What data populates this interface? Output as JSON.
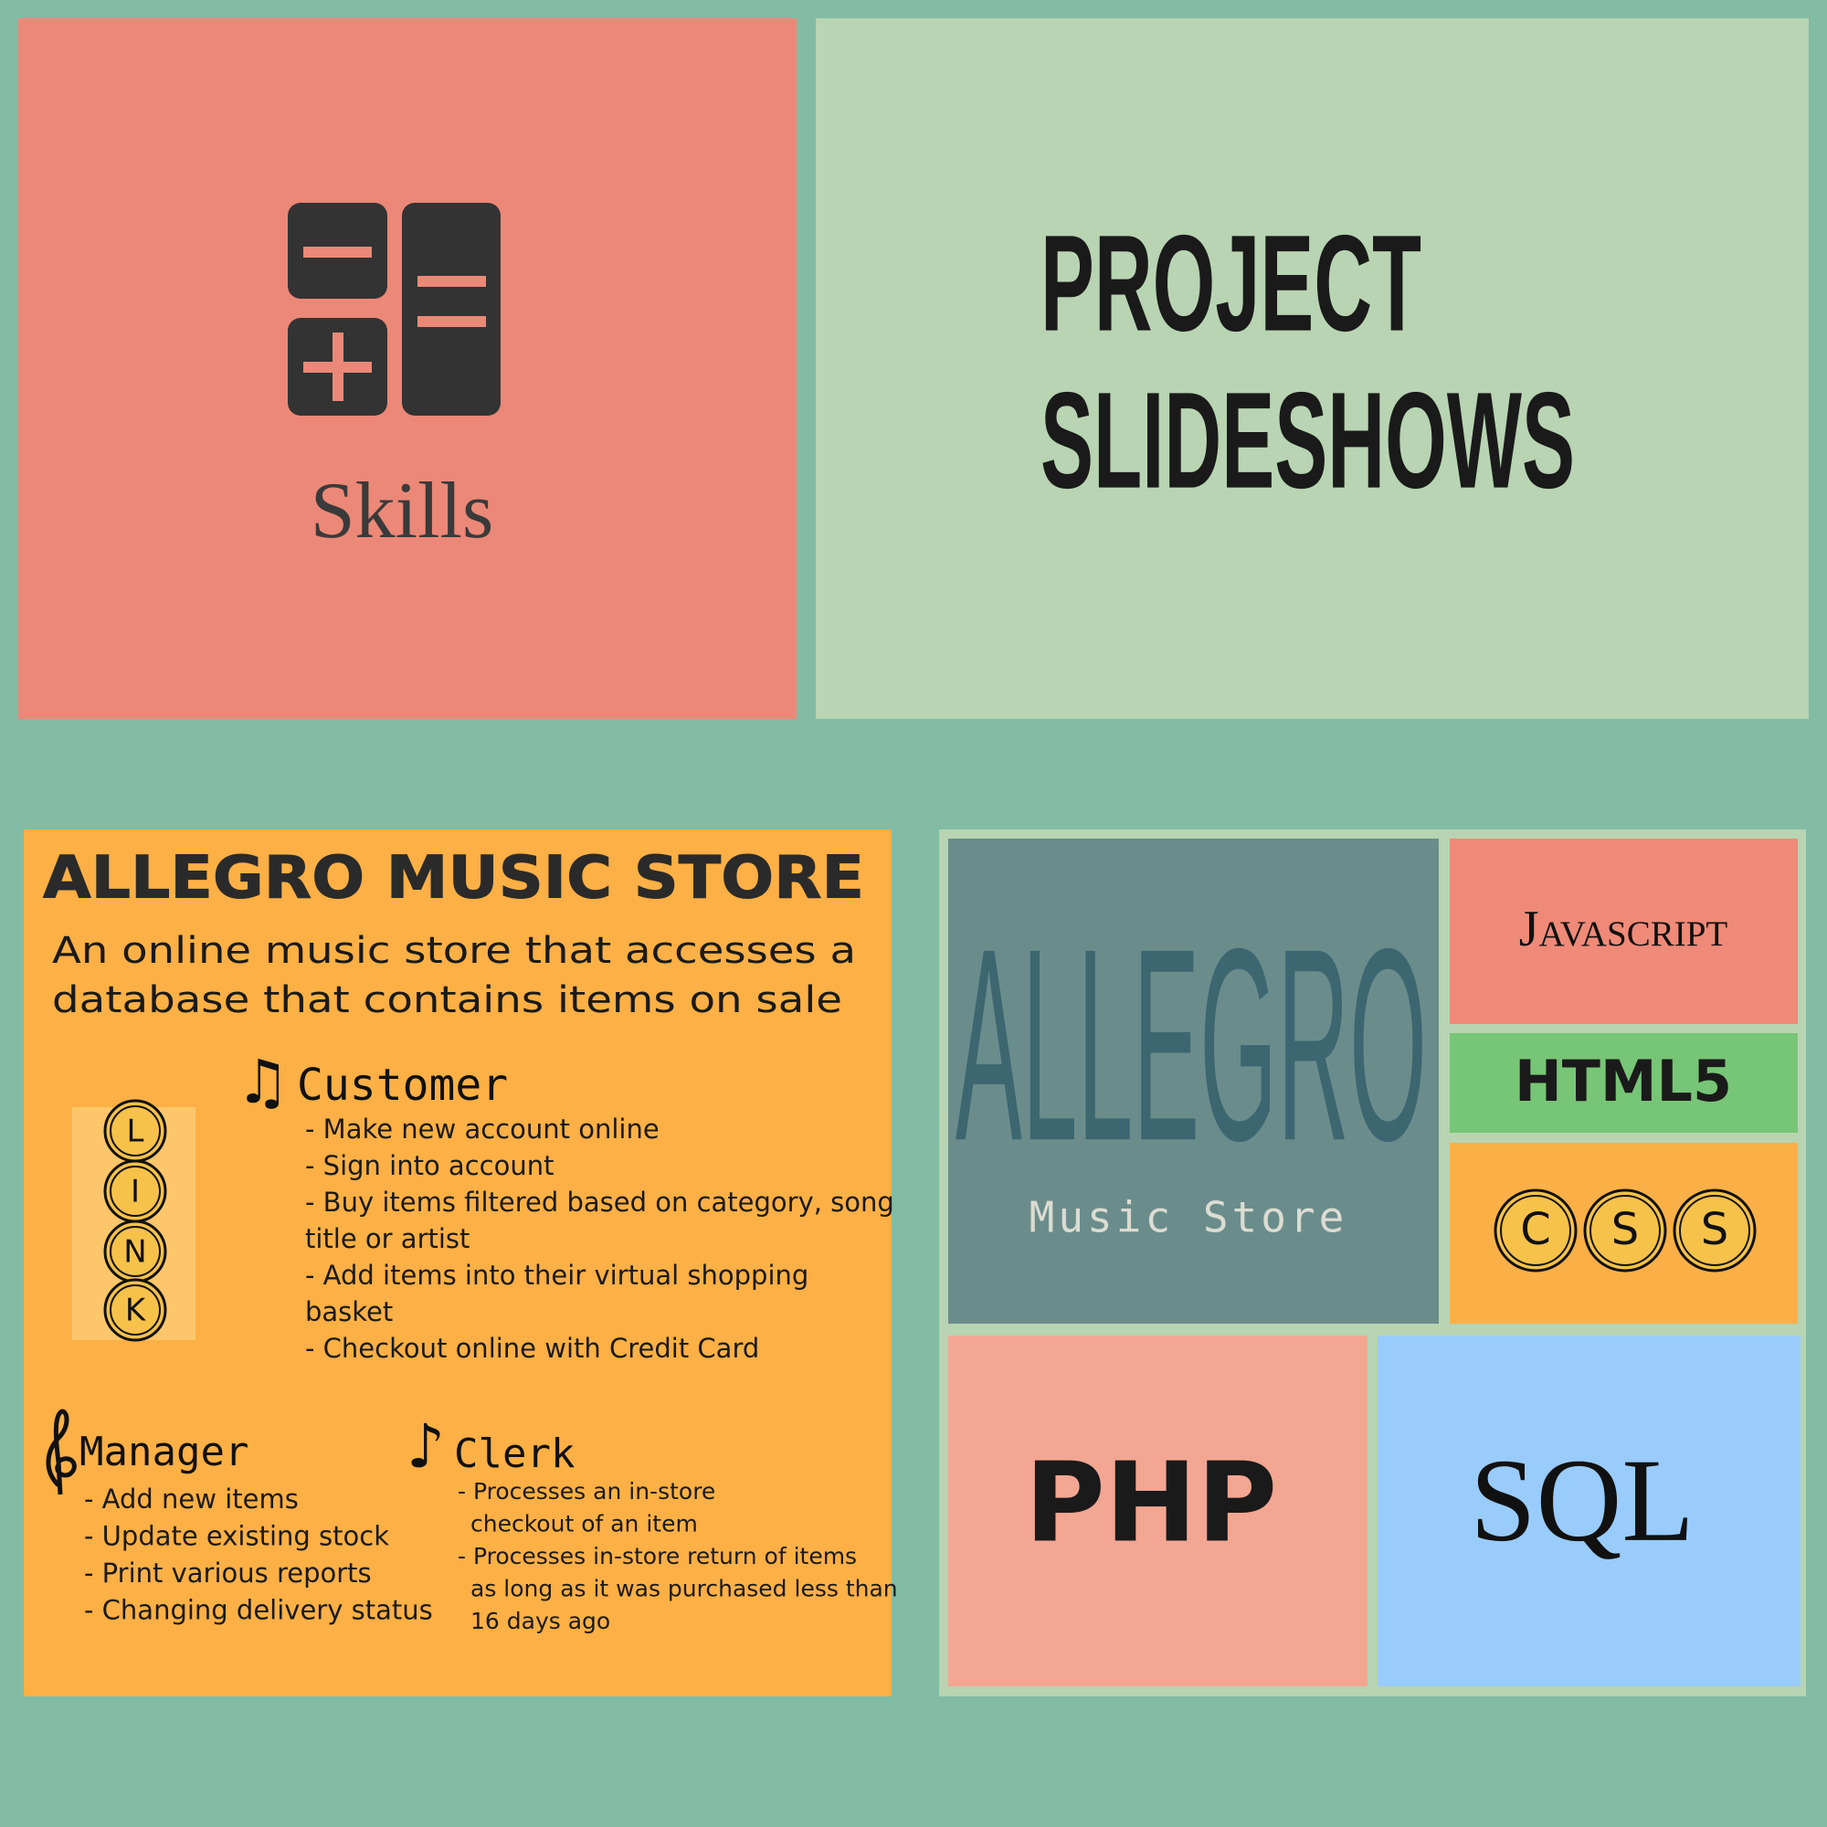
{
  "skills_tile": {
    "label": "Skills"
  },
  "projects_tile": {
    "lines": [
      "PROJECT",
      "SLIDESHOWS"
    ]
  },
  "allegro_card": {
    "title": "ALLEGRO MUSIC STORE",
    "description": [
      "An online music store that accesses a",
      "database that contains items on sale"
    ],
    "link_letters": [
      "L",
      "I",
      "N",
      "K"
    ],
    "customer": {
      "icon": "♫",
      "heading": "Customer",
      "lines": [
        "- Make new account online",
        "- Sign into account",
        "- Buy items filtered based on category, song",
        "title or artist",
        "- Add items into their virtual shopping",
        "basket",
        "- Checkout online with Credit Card"
      ]
    },
    "manager": {
      "heading": "Manager",
      "lines": [
        "- Add new items",
        "- Update existing stock",
        "- Print various reports",
        "- Changing delivery status"
      ]
    },
    "clerk": {
      "icon": "♪",
      "heading": "Clerk",
      "lines": [
        "- Processes an in-store",
        "checkout of an item",
        "- Processes in-store return of items",
        "as long as it was purchased less than",
        "16 days ago"
      ]
    }
  },
  "tech_panel": {
    "logo": {
      "title": "ALLEGRO",
      "subtitle": "Music Store"
    },
    "javascript": "Javascript",
    "html5": "HTML5",
    "css_letters": [
      "C",
      "S",
      "S"
    ],
    "php": "PHP",
    "sql": "SQL"
  }
}
